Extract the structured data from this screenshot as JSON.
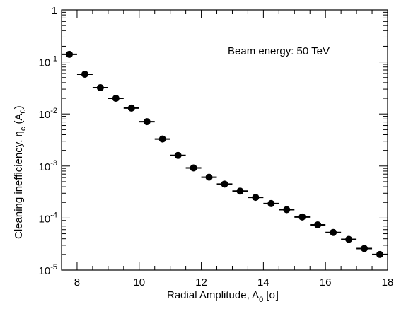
{
  "chart_data": {
    "type": "scatter",
    "title": "",
    "xlabel": {
      "main": "Radial Amplitude, A",
      "sub": "0",
      "unit": " [σ]"
    },
    "ylabel": {
      "main": "Cleaning inefficiency, η",
      "sub": "c",
      "arg_open": " (A",
      "arg_sub": "0",
      "arg_close": ")"
    },
    "annotation": "Beam energy: 50 TeV",
    "xlim": [
      7.5,
      18
    ],
    "ylim": [
      1e-05,
      1
    ],
    "yscale": "log",
    "grid": false,
    "x_ticks": [
      8,
      10,
      12,
      14,
      16,
      18
    ],
    "x_tick_labels": [
      "8",
      "10",
      "12",
      "14",
      "16",
      "18"
    ],
    "y_ticks": [
      {
        "value": 1,
        "base": "1",
        "exp": ""
      },
      {
        "value": 0.1,
        "base": "10",
        "exp": "-1"
      },
      {
        "value": 0.01,
        "base": "10",
        "exp": "-2"
      },
      {
        "value": 0.001,
        "base": "10",
        "exp": "-3"
      },
      {
        "value": 0.0001,
        "base": "10",
        "exp": "-4"
      },
      {
        "value": 1e-05,
        "base": "10",
        "exp": "-5"
      }
    ],
    "x_bin_half_width": 0.25,
    "x": [
      7.75,
      8.25,
      8.75,
      9.25,
      9.75,
      10.25,
      10.75,
      11.25,
      11.75,
      12.25,
      12.75,
      13.25,
      13.75,
      14.25,
      14.75,
      15.25,
      15.75,
      16.25,
      16.75,
      17.25,
      17.75
    ],
    "values": [
      0.14,
      0.058,
      0.032,
      0.02,
      0.013,
      0.0071,
      0.0033,
      0.0016,
      0.00092,
      0.00061,
      0.00045,
      0.00033,
      0.00025,
      0.00019,
      0.000145,
      0.000105,
      7.4e-05,
      5.3e-05,
      3.9e-05,
      2.6e-05,
      2e-05
    ],
    "marker_color": "#000000"
  }
}
